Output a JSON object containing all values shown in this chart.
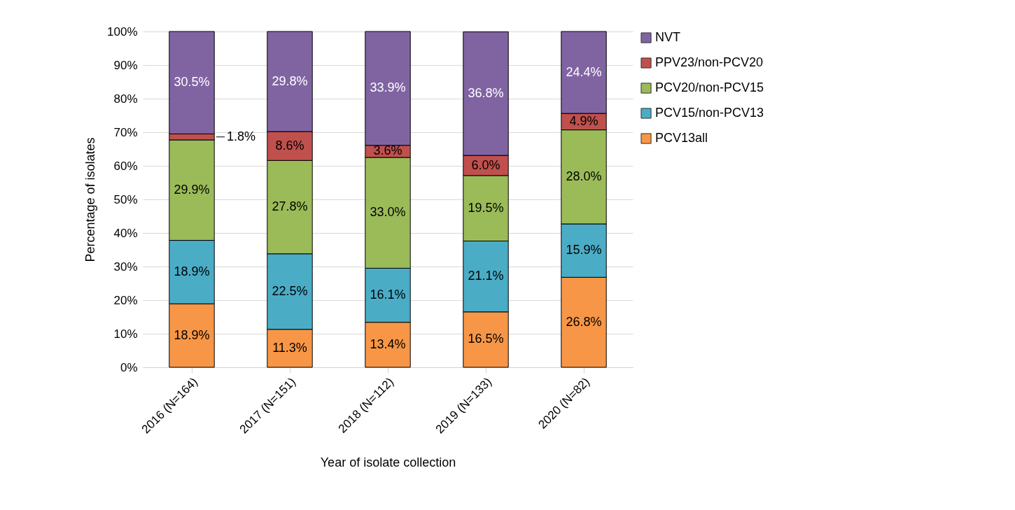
{
  "chart_data": {
    "type": "bar",
    "stacked": true,
    "xlabel": "Year of isolate collection",
    "ylabel": "Percentage of isolates",
    "categories": [
      "2016 (N=164)",
      "2017 (N=151)",
      "2018 (N=112)",
      "2019 (N=133)",
      "2020 (N=82)"
    ],
    "series": [
      {
        "name": "PCV13all",
        "color": "#f79646",
        "values": [
          18.9,
          11.3,
          13.4,
          16.5,
          26.8
        ],
        "value_labels": [
          "18.9%",
          "11.3%",
          "13.4%",
          "16.5%",
          "26.8%"
        ]
      },
      {
        "name": "PCV15/non-PCV13",
        "color": "#4bacc6",
        "values": [
          18.9,
          22.5,
          16.1,
          21.1,
          15.9
        ],
        "value_labels": [
          "18.9%",
          "22.5%",
          "16.1%",
          "21.1%",
          "15.9%"
        ]
      },
      {
        "name": "PCV20/non-PCV15",
        "color": "#9bbb59",
        "values": [
          29.9,
          27.8,
          33.0,
          19.5,
          28.0
        ],
        "value_labels": [
          "29.9%",
          "27.8%",
          "33.0%",
          "19.5%",
          "28.0%"
        ]
      },
      {
        "name": "PPV23/non-PCV20",
        "color": "#c0504d",
        "values": [
          1.8,
          8.6,
          3.6,
          6.0,
          4.9
        ],
        "value_labels": [
          "1.8%",
          "8.6%",
          "3.6%",
          "6.0%",
          "4.9%"
        ]
      },
      {
        "name": "NVT",
        "color": "#8064a2",
        "values": [
          30.5,
          29.8,
          33.9,
          36.8,
          24.4
        ],
        "value_labels": [
          "30.5%",
          "29.8%",
          "33.9%",
          "36.8%",
          "24.4%"
        ]
      }
    ],
    "ylim": [
      0,
      100
    ],
    "yticks": [
      {
        "value": 0,
        "label": "0%"
      },
      {
        "value": 10,
        "label": "10%"
      },
      {
        "value": 20,
        "label": "20%"
      },
      {
        "value": 30,
        "label": "30%"
      },
      {
        "value": 40,
        "label": "40%"
      },
      {
        "value": 50,
        "label": "50%"
      },
      {
        "value": 60,
        "label": "60%"
      },
      {
        "value": 70,
        "label": "70%"
      },
      {
        "value": 80,
        "label": "80%"
      },
      {
        "value": 90,
        "label": "90%"
      },
      {
        "value": 100,
        "label": "100%"
      }
    ],
    "grid": "y",
    "legend": "right"
  }
}
